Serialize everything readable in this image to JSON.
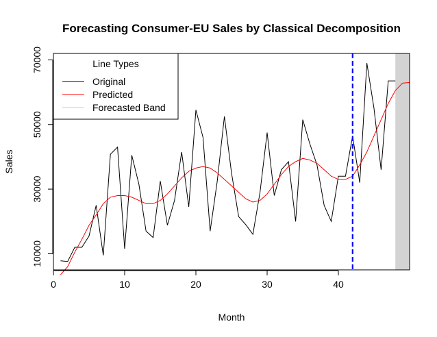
{
  "chart_data": {
    "type": "line",
    "title": "Forecasting Consumer-EU Sales by Classical Decomposition",
    "xlabel": "Month",
    "ylabel": "Sales",
    "xlim": [
      0,
      50
    ],
    "ylim": [
      5000,
      72000
    ],
    "x_ticks": [
      0,
      10,
      20,
      30,
      40
    ],
    "y_ticks": [
      10000,
      30000,
      50000,
      70000
    ],
    "y_tick_labels": [
      "10000",
      "30000",
      "50000",
      "70000"
    ],
    "legend": {
      "title": "Line Types",
      "position": "top-left",
      "entries": [
        "Original",
        "Predicted",
        "Forecasted Band"
      ]
    },
    "forecast_start": 42,
    "forecast_band": [
      48,
      50
    ],
    "series": [
      {
        "name": "Original",
        "color": "#000000",
        "x": [
          1,
          2,
          3,
          4,
          5,
          6,
          7,
          8,
          9,
          10,
          11,
          12,
          13,
          14,
          15,
          16,
          17,
          18,
          19,
          20,
          21,
          22,
          23,
          24,
          25,
          26,
          27,
          28,
          29,
          30,
          31,
          32,
          33,
          34,
          35,
          36,
          37,
          38,
          39,
          40,
          41,
          42,
          43,
          44,
          45,
          46,
          47,
          48
        ],
        "values": [
          7800,
          7600,
          12000,
          12000,
          15500,
          25000,
          9500,
          40800,
          43000,
          11500,
          40500,
          31500,
          17000,
          15000,
          32500,
          18800,
          26500,
          41500,
          24500,
          54500,
          46000,
          17000,
          32500,
          52500,
          35000,
          21500,
          19000,
          16000,
          29000,
          47500,
          28000,
          36000,
          38500,
          20000,
          51500,
          44000,
          37500,
          25000,
          20000,
          34000,
          34000,
          46500,
          32000,
          69000,
          55000,
          36000,
          63500,
          63500
        ]
      },
      {
        "name": "Predicted",
        "color": "#ff0000",
        "x": [
          1,
          2,
          3,
          4,
          5,
          6,
          7,
          8,
          9,
          10,
          11,
          12,
          13,
          14,
          15,
          16,
          17,
          18,
          19,
          20,
          21,
          22,
          23,
          24,
          25,
          26,
          27,
          28,
          29,
          30,
          31,
          32,
          33,
          34,
          35,
          36,
          37,
          38,
          39,
          40,
          41,
          42,
          43,
          44,
          45,
          46,
          47,
          48,
          49,
          50
        ],
        "values": [
          3500,
          6000,
          10500,
          14500,
          18800,
          22000,
          25500,
          27500,
          28000,
          28000,
          27500,
          26500,
          25500,
          25500,
          26500,
          28500,
          31000,
          33500,
          35500,
          36500,
          37000,
          36500,
          35000,
          33000,
          31000,
          29000,
          27000,
          26000,
          26500,
          28500,
          31500,
          34500,
          37000,
          38500,
          39500,
          39000,
          38000,
          36000,
          34000,
          33000,
          33000,
          34000,
          37500,
          41500,
          46500,
          51500,
          56500,
          60500,
          62800,
          63000
        ]
      },
      {
        "name": "Forecasted Band",
        "color": "#d3d3d3",
        "x": [],
        "values": []
      }
    ]
  }
}
